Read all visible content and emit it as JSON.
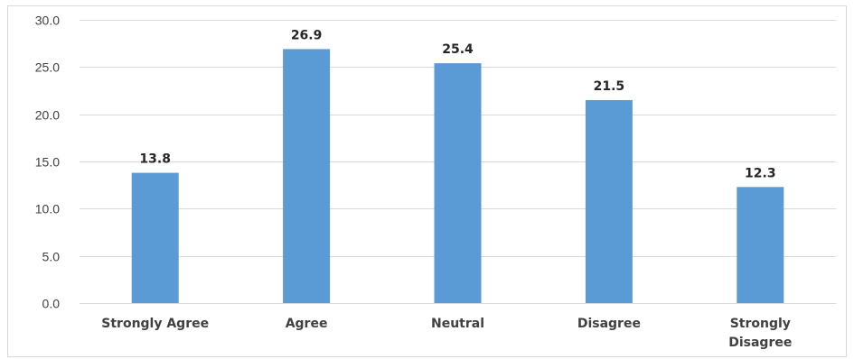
{
  "chart_data": {
    "type": "bar",
    "categories": [
      "Strongly Agree",
      "Agree",
      "Neutral",
      "Disagree",
      "Strongly Disagree"
    ],
    "category_lines": [
      [
        "Strongly Agree"
      ],
      [
        "Agree"
      ],
      [
        "Neutral"
      ],
      [
        "Disagree"
      ],
      [
        "Strongly",
        "Disagree"
      ]
    ],
    "values": [
      13.8,
      26.9,
      25.4,
      21.5,
      12.3
    ],
    "data_labels": [
      "13.8",
      "26.9",
      "25.4",
      "21.5",
      "12.3"
    ],
    "yticks": [
      "0.0",
      "5.0",
      "10.0",
      "15.0",
      "20.0",
      "25.0",
      "30.0"
    ],
    "ylim": [
      0,
      30
    ],
    "title": "",
    "xlabel": "",
    "ylabel": "",
    "grid": true,
    "legend": "none",
    "bar_color": "#5b9bd5",
    "grid_color": "#d9d9d9"
  }
}
